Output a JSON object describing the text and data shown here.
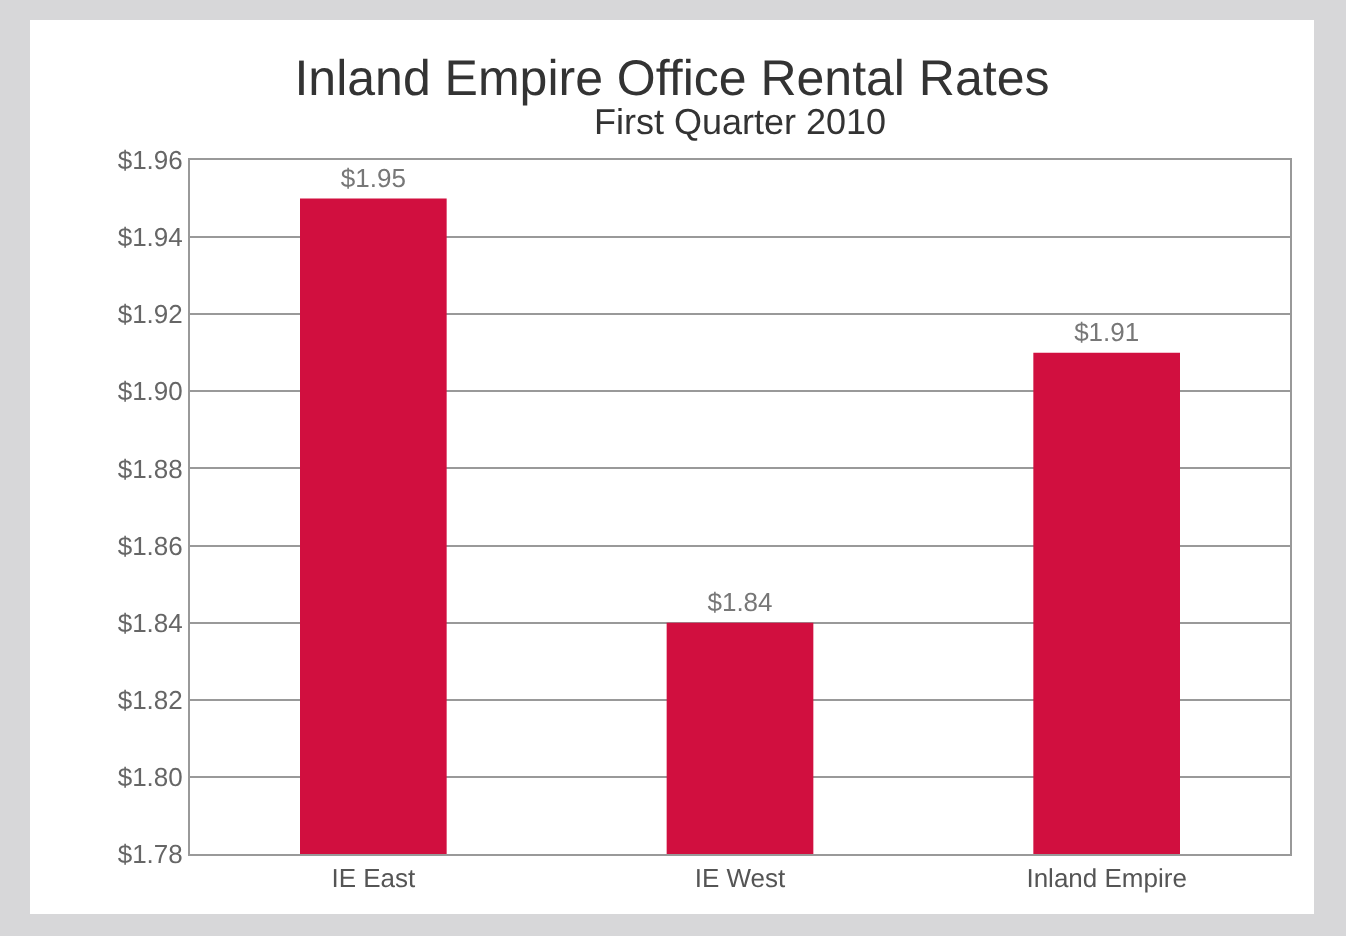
{
  "chart_data": {
    "type": "bar",
    "title": "Inland Empire Office Rental Rates",
    "subtitle": "First Quarter 2010",
    "categories": [
      "IE East",
      "IE West",
      "Inland Empire"
    ],
    "values": [
      1.95,
      1.84,
      1.91
    ],
    "color": "#d10f3f",
    "value_labels": [
      "$1.95",
      "$1.84",
      "$1.91"
    ],
    "ylim": [
      1.78,
      1.96
    ],
    "yticks": [
      {
        "value": 1.78,
        "label": "$1.78"
      },
      {
        "value": 1.8,
        "label": "$1.80"
      },
      {
        "value": 1.82,
        "label": "$1.82"
      },
      {
        "value": 1.84,
        "label": "$1.84"
      },
      {
        "value": 1.86,
        "label": "$1.86"
      },
      {
        "value": 1.88,
        "label": "$1.88"
      },
      {
        "value": 1.9,
        "label": "$1.90"
      },
      {
        "value": 1.92,
        "label": "$1.92"
      },
      {
        "value": 1.94,
        "label": "$1.94"
      },
      {
        "value": 1.96,
        "label": "$1.96"
      }
    ],
    "grid": "y"
  }
}
